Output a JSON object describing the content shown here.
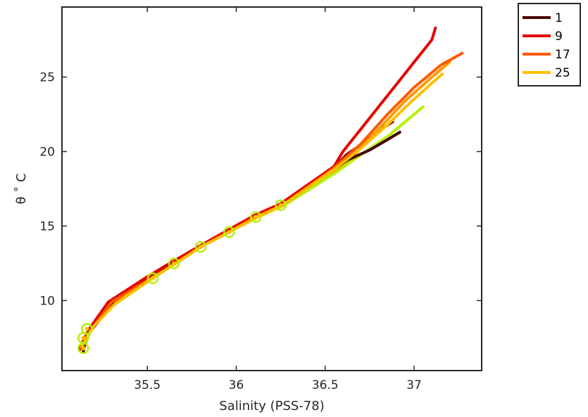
{
  "chart_data": {
    "type": "line",
    "title": "",
    "xlabel": "Salinity (PSS-78)",
    "ylabel": "θ ˚ C",
    "xlim": [
      35.02,
      37.38
    ],
    "ylim": [
      5.3,
      29.7
    ],
    "xticks": [
      35.5,
      36,
      36.5,
      37
    ],
    "xtick_labels": [
      "35.5",
      "36",
      "36.5",
      "37"
    ],
    "yticks": [
      10,
      15,
      20,
      25
    ],
    "ytick_labels": [
      "10",
      "15",
      "20",
      "25"
    ],
    "grid": false,
    "legend_position": "outside-top-right",
    "colors": {
      "axis": "#262626",
      "s1": "#4a0000",
      "s9": "#e60000",
      "s17": "#ff5a00",
      "s25": "#ffbe00",
      "mid_a": "#a00000",
      "mid_b": "#ff9a00",
      "late": "#b4f000"
    },
    "series": [
      {
        "name": "1",
        "color": "#4a0000",
        "x": [
          35.14,
          35.15,
          35.18,
          35.3,
          35.5,
          35.65,
          35.8,
          35.95,
          36.1,
          36.25,
          36.5,
          36.62,
          36.75,
          36.85,
          36.92
        ],
        "y": [
          6.6,
          7.2,
          8.1,
          9.8,
          11.5,
          12.5,
          13.6,
          14.6,
          15.6,
          16.4,
          18.4,
          19.4,
          20.1,
          20.8,
          21.3
        ]
      },
      {
        "name": "9",
        "color": "#e60000",
        "x": [
          35.12,
          35.14,
          35.18,
          35.28,
          35.5,
          35.64,
          35.8,
          35.95,
          36.1,
          36.25,
          36.55,
          36.6,
          36.7,
          36.8,
          36.9,
          37.0,
          37.1,
          37.12
        ],
        "y": [
          6.7,
          7.3,
          8.2,
          9.9,
          11.6,
          12.6,
          13.7,
          14.7,
          15.7,
          16.5,
          19.0,
          20.0,
          21.5,
          23.0,
          24.5,
          26.0,
          27.5,
          28.3
        ]
      },
      {
        "name": "17",
        "color": "#ff5a00",
        "x": [
          35.13,
          35.15,
          35.2,
          35.3,
          35.52,
          35.66,
          35.8,
          35.96,
          36.1,
          36.26,
          36.55,
          36.7,
          36.85,
          37.0,
          37.15,
          37.27
        ],
        "y": [
          6.8,
          7.4,
          8.3,
          9.9,
          11.5,
          12.5,
          13.6,
          14.6,
          15.6,
          16.4,
          18.9,
          20.5,
          22.5,
          24.3,
          25.8,
          26.6
        ]
      },
      {
        "name": "25",
        "color": "#ffbe00",
        "x": [
          35.13,
          35.16,
          35.2,
          35.32,
          35.53,
          35.66,
          35.8,
          35.96,
          36.12,
          36.26,
          36.55,
          36.7,
          36.85,
          36.98,
          37.1,
          37.16
        ],
        "y": [
          6.9,
          7.5,
          8.3,
          9.8,
          11.5,
          12.5,
          13.6,
          14.6,
          15.6,
          16.4,
          18.8,
          20.2,
          21.8,
          23.3,
          24.6,
          25.2
        ]
      }
    ],
    "extra_series": [
      {
        "color": "#a00000",
        "x": [
          35.14,
          35.17,
          35.3,
          35.5,
          35.66,
          35.8,
          35.96,
          36.11,
          36.25,
          36.55,
          36.62,
          36.72,
          36.8,
          36.88
        ],
        "y": [
          6.7,
          7.8,
          9.7,
          11.6,
          12.5,
          13.6,
          14.6,
          15.6,
          16.4,
          18.9,
          19.8,
          20.6,
          21.4,
          22.0
        ]
      },
      {
        "color": "#ff9a00",
        "x": [
          35.13,
          35.18,
          35.3,
          35.52,
          35.65,
          35.8,
          35.95,
          36.1,
          36.26,
          36.55,
          36.65,
          36.8,
          36.95,
          37.1,
          37.2
        ],
        "y": [
          6.8,
          8.0,
          9.8,
          11.5,
          12.5,
          13.6,
          14.6,
          15.6,
          16.4,
          18.7,
          19.6,
          21.5,
          23.4,
          25.0,
          26.0
        ]
      },
      {
        "color": "#b4f000",
        "x": [
          35.13,
          35.17,
          35.3,
          35.53,
          35.66,
          35.8,
          35.96,
          36.12,
          36.27,
          36.56,
          36.7,
          36.85,
          36.95,
          37.05
        ],
        "y": [
          7.0,
          8.1,
          9.6,
          11.5,
          12.5,
          13.6,
          14.6,
          15.6,
          16.4,
          18.6,
          19.8,
          21.0,
          22.0,
          23.0
        ]
      }
    ],
    "markers": [
      {
        "x": 35.14,
        "y": 6.8
      },
      {
        "x": 35.14,
        "y": 7.5
      },
      {
        "x": 35.16,
        "y": 8.1
      },
      {
        "x": 35.53,
        "y": 11.5
      },
      {
        "x": 35.65,
        "y": 12.5
      },
      {
        "x": 35.8,
        "y": 13.6
      },
      {
        "x": 35.96,
        "y": 14.6
      },
      {
        "x": 36.11,
        "y": 15.6
      },
      {
        "x": 36.25,
        "y": 16.4
      }
    ],
    "legend": [
      "1",
      "9",
      "17",
      "25"
    ]
  }
}
